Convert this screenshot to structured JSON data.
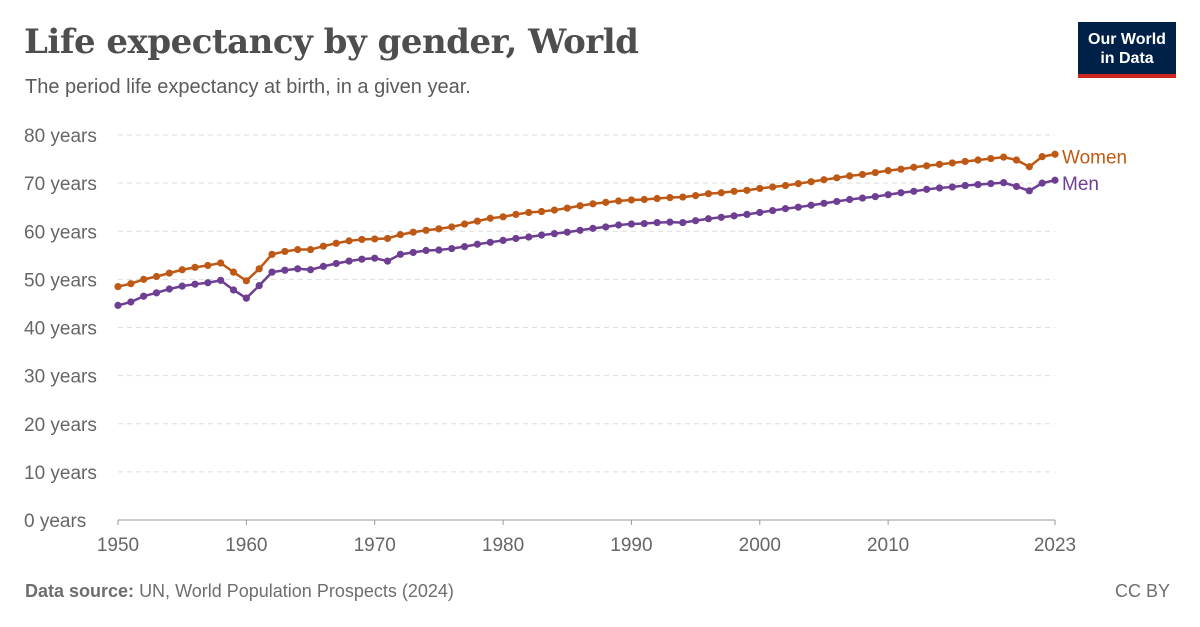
{
  "header": {
    "title": "Life expectancy by gender, World",
    "subtitle": "The period life expectancy at birth, in a given year."
  },
  "logo": {
    "line1": "Our World",
    "line2": "in Data"
  },
  "footer": {
    "source_label": "Data source:",
    "source_text": "UN, World Population Prospects (2024)",
    "license": "CC BY"
  },
  "chart_data": {
    "type": "line",
    "title": "Life expectancy by gender, World",
    "subtitle": "The period life expectancy at birth, in a given year.",
    "xlabel": "",
    "ylabel": "",
    "xlim": [
      1950,
      2023
    ],
    "ylim": [
      0,
      80
    ],
    "x_ticks": [
      1950,
      1960,
      1970,
      1980,
      1990,
      2000,
      2010,
      2023
    ],
    "y_ticks": [
      0,
      10,
      20,
      30,
      40,
      50,
      60,
      70,
      80
    ],
    "y_tick_labels": [
      "0 years",
      "10 years",
      "20 years",
      "30 years",
      "40 years",
      "50 years",
      "60 years",
      "70 years",
      "80 years"
    ],
    "grid": "horizontal dashed",
    "legend": "inline labels at line ends",
    "x": [
      1950,
      1951,
      1952,
      1953,
      1954,
      1955,
      1956,
      1957,
      1958,
      1959,
      1960,
      1961,
      1962,
      1963,
      1964,
      1965,
      1966,
      1967,
      1968,
      1969,
      1970,
      1971,
      1972,
      1973,
      1974,
      1975,
      1976,
      1977,
      1978,
      1979,
      1980,
      1981,
      1982,
      1983,
      1984,
      1985,
      1986,
      1987,
      1988,
      1989,
      1990,
      1991,
      1992,
      1993,
      1994,
      1995,
      1996,
      1997,
      1998,
      1999,
      2000,
      2001,
      2002,
      2003,
      2004,
      2005,
      2006,
      2007,
      2008,
      2009,
      2010,
      2011,
      2012,
      2013,
      2014,
      2015,
      2016,
      2017,
      2018,
      2019,
      2020,
      2021,
      2022,
      2023
    ],
    "series": [
      {
        "name": "Women",
        "color": "#be5915",
        "values": [
          48.5,
          49.1,
          50.0,
          50.6,
          51.3,
          52.0,
          52.5,
          52.9,
          53.4,
          51.5,
          49.7,
          52.2,
          55.2,
          55.8,
          56.2,
          56.2,
          56.9,
          57.5,
          58.0,
          58.3,
          58.4,
          58.5,
          59.3,
          59.8,
          60.2,
          60.5,
          60.9,
          61.5,
          62.1,
          62.7,
          63.0,
          63.5,
          63.9,
          64.1,
          64.4,
          64.8,
          65.3,
          65.7,
          66.0,
          66.3,
          66.5,
          66.6,
          66.8,
          67.0,
          67.1,
          67.4,
          67.8,
          68.0,
          68.3,
          68.5,
          68.9,
          69.2,
          69.5,
          69.9,
          70.3,
          70.7,
          71.1,
          71.5,
          71.8,
          72.2,
          72.6,
          72.9,
          73.3,
          73.6,
          73.9,
          74.2,
          74.5,
          74.8,
          75.1,
          75.4,
          74.8,
          73.4,
          75.5,
          76.0
        ]
      },
      {
        "name": "Men",
        "color": "#6d3e91",
        "values": [
          44.6,
          45.3,
          46.5,
          47.2,
          48.0,
          48.6,
          49.0,
          49.3,
          49.8,
          47.8,
          46.1,
          48.7,
          51.5,
          51.9,
          52.2,
          52.0,
          52.7,
          53.3,
          53.8,
          54.2,
          54.4,
          53.8,
          55.2,
          55.6,
          56.0,
          56.1,
          56.4,
          56.8,
          57.3,
          57.7,
          58.1,
          58.5,
          58.8,
          59.2,
          59.5,
          59.8,
          60.2,
          60.6,
          60.9,
          61.3,
          61.5,
          61.6,
          61.8,
          61.9,
          61.8,
          62.2,
          62.6,
          62.9,
          63.2,
          63.5,
          63.9,
          64.3,
          64.7,
          65.0,
          65.4,
          65.8,
          66.2,
          66.6,
          66.9,
          67.2,
          67.6,
          68.0,
          68.3,
          68.7,
          69.0,
          69.2,
          69.5,
          69.7,
          69.9,
          70.1,
          69.3,
          68.4,
          70.0,
          70.6
        ]
      }
    ]
  }
}
